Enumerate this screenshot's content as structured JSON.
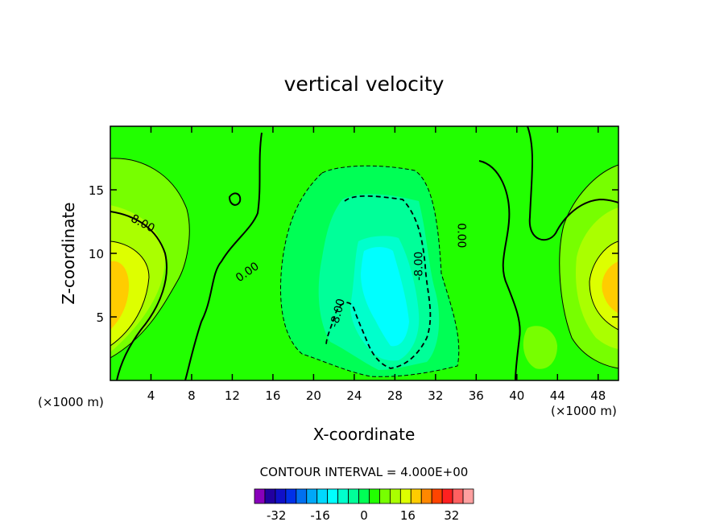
{
  "chart_data": {
    "type": "contour",
    "title": "vertical velocity",
    "xlabel": "X-coordinate",
    "ylabel": "Z-coordinate",
    "x_unit": "(×1000 m)",
    "x_unit_right": "(×1000 m)",
    "xlim": [
      0,
      50
    ],
    "ylim": [
      0,
      20
    ],
    "x_ticks": [
      4,
      8,
      12,
      16,
      20,
      24,
      28,
      32,
      36,
      40,
      44,
      48
    ],
    "y_ticks": [
      5,
      10,
      15
    ],
    "contour_interval_text": "CONTOUR INTERVAL = 4.000E+00",
    "contour_interval": 4,
    "contour_labels": [
      {
        "text": "-8.00",
        "x": 3.0,
        "y": 12.4
      },
      {
        "text": "0.00",
        "x": 13.5,
        "y": 8.5
      },
      {
        "text": "-8.00",
        "x": 22.4,
        "y": 5.3
      },
      {
        "text": "-8.00",
        "x": 30.4,
        "y": 9.0
      },
      {
        "text": "0.00",
        "x": 34.5,
        "y": 11.4
      }
    ],
    "colorbar": {
      "levels": [
        -40,
        -36,
        -32,
        -28,
        -24,
        -20,
        -16,
        -12,
        -8,
        -4,
        0,
        4,
        8,
        12,
        16,
        20,
        24,
        28,
        32,
        36,
        40
      ],
      "colors": [
        "#8800bb",
        "#2200a0",
        "#1010c8",
        "#0030e8",
        "#0070f0",
        "#00a8f8",
        "#00d8ff",
        "#00ffff",
        "#00ffcc",
        "#00ff99",
        "#00ff55",
        "#22ff00",
        "#77ff00",
        "#aaff00",
        "#ddff00",
        "#ffcc00",
        "#ff8800",
        "#ff4400",
        "#ff2020",
        "#ff6060",
        "#ffa0a0"
      ],
      "tick_labels": [
        "-32",
        "-16",
        "0",
        "16",
        "32"
      ],
      "tick_values": [
        -32,
        -16,
        0,
        16,
        32
      ]
    }
  }
}
